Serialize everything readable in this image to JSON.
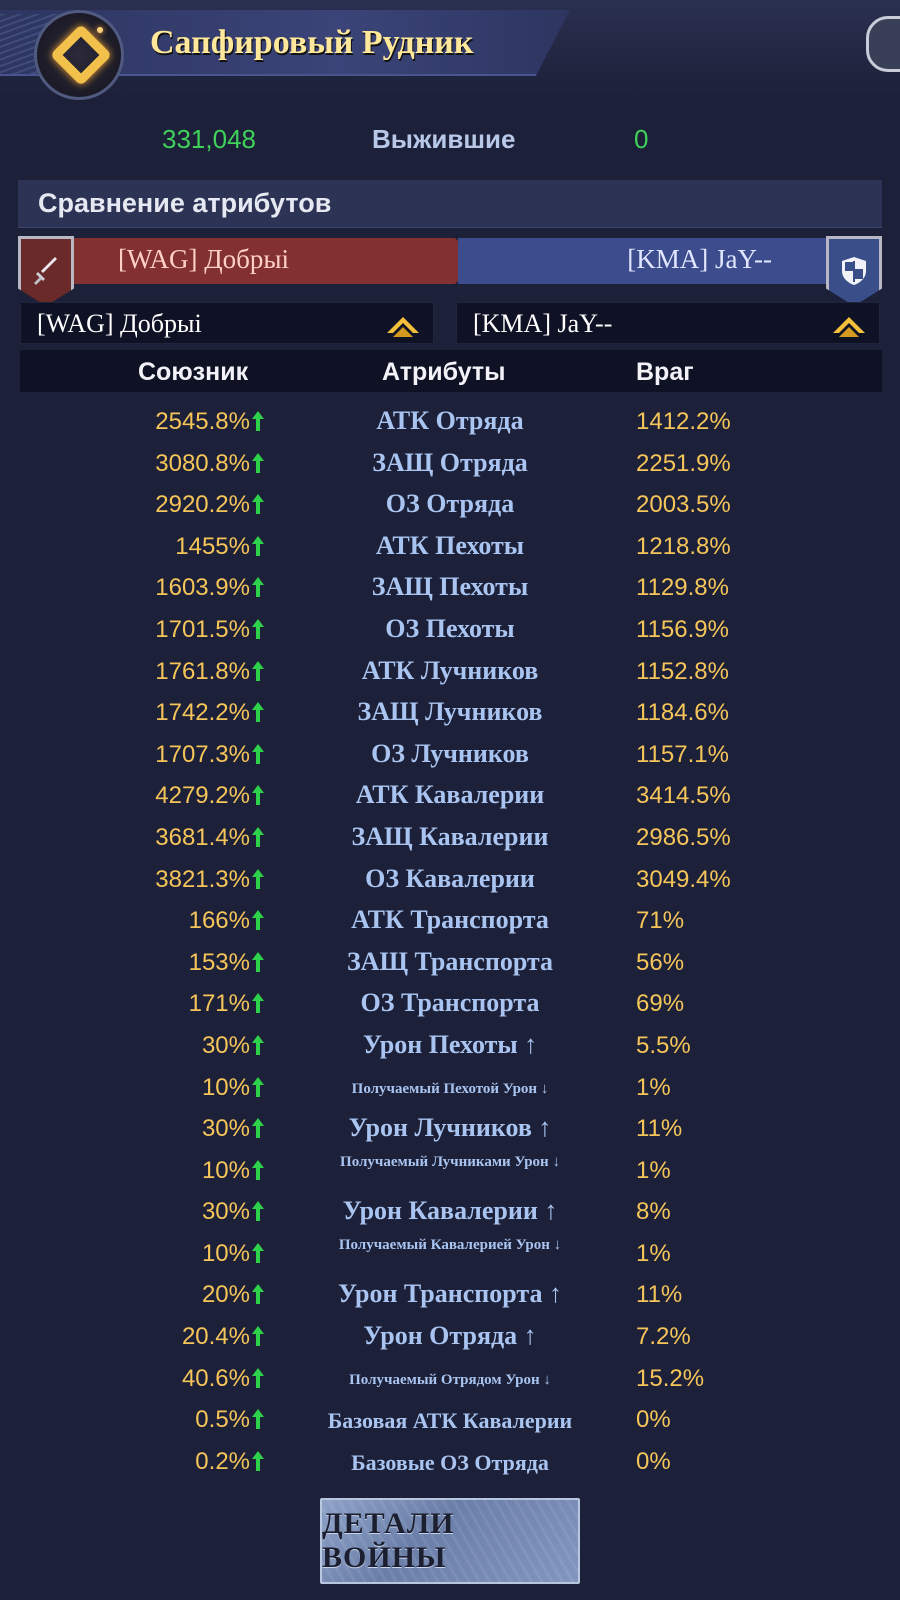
{
  "header": {
    "title": "Сапфировый Рудник"
  },
  "stats": {
    "left_value": "331,048",
    "label": "Выжившие",
    "right_value": "0"
  },
  "section": {
    "title": "Сравнение атрибутов"
  },
  "versus": {
    "ally_name": "[WAG] Добрыі",
    "enemy_name": "[KMA] JaY--"
  },
  "selectors": {
    "ally": "[WAG] Добрыі",
    "enemy": "[KMA] JaY--"
  },
  "columns": {
    "ally": "Союзник",
    "attributes": "Атрибуты",
    "enemy": "Враг"
  },
  "rows": [
    {
      "ally": "2545.8%",
      "attr": "АТК Отряда",
      "enemy": "1412.2%",
      "size": "normal"
    },
    {
      "ally": "3080.8%",
      "attr": "ЗАЩ Отряда",
      "enemy": "2251.9%",
      "size": "normal"
    },
    {
      "ally": "2920.2%",
      "attr": "ОЗ Отряда",
      "enemy": "2003.5%",
      "size": "normal"
    },
    {
      "ally": "1455%",
      "attr": "АТК Пехоты",
      "enemy": "1218.8%",
      "size": "normal"
    },
    {
      "ally": "1603.9%",
      "attr": "ЗАЩ Пехоты",
      "enemy": "1129.8%",
      "size": "normal"
    },
    {
      "ally": "1701.5%",
      "attr": "ОЗ Пехоты",
      "enemy": "1156.9%",
      "size": "normal"
    },
    {
      "ally": "1761.8%",
      "attr": "АТК Лучников",
      "enemy": "1152.8%",
      "size": "normal"
    },
    {
      "ally": "1742.2%",
      "attr": "ЗАЩ Лучников",
      "enemy": "1184.6%",
      "size": "normal"
    },
    {
      "ally": "1707.3%",
      "attr": "ОЗ Лучников",
      "enemy": "1157.1%",
      "size": "normal"
    },
    {
      "ally": "4279.2%",
      "attr": "АТК Кавалерии",
      "enemy": "3414.5%",
      "size": "normal"
    },
    {
      "ally": "3681.4%",
      "attr": "ЗАЩ Кавалерии",
      "enemy": "2986.5%",
      "size": "normal"
    },
    {
      "ally": "3821.3%",
      "attr": "ОЗ Кавалерии",
      "enemy": "3049.4%",
      "size": "normal"
    },
    {
      "ally": "166%",
      "attr": "АТК Транспорта",
      "enemy": "71%",
      "size": "normal"
    },
    {
      "ally": "153%",
      "attr": "ЗАЩ Транспорта",
      "enemy": "56%",
      "size": "normal"
    },
    {
      "ally": "171%",
      "attr": "ОЗ Транспорта",
      "enemy": "69%",
      "size": "normal"
    },
    {
      "ally": "30%",
      "attr": "Урон Пехоты ↑",
      "enemy": "5.5%",
      "size": "normal"
    },
    {
      "ally": "10%",
      "attr": "Получаемый Пехотой Урон ↓",
      "enemy": "1%",
      "size": "small"
    },
    {
      "ally": "30%",
      "attr": "Урон Лучников ↑",
      "enemy": "11%",
      "size": "normal"
    },
    {
      "ally": "10%",
      "attr": "Получаемый Лучниками Урон ↓",
      "enemy": "1%",
      "size": "small-two"
    },
    {
      "ally": "30%",
      "attr": "Урон Кавалерии ↑",
      "enemy": "8%",
      "size": "normal"
    },
    {
      "ally": "10%",
      "attr": "Получаемый Кавалерией Урон ↓",
      "enemy": "1%",
      "size": "small-two"
    },
    {
      "ally": "20%",
      "attr": "Урон Транспорта ↑",
      "enemy": "11%",
      "size": "normal"
    },
    {
      "ally": "20.4%",
      "attr": "Урон Отряда ↑",
      "enemy": "7.2%",
      "size": "normal"
    },
    {
      "ally": "40.6%",
      "attr": "Получаемый Отрядом Урон ↓",
      "enemy": "15.2%",
      "size": "small"
    },
    {
      "ally": "0.5%",
      "attr": "Базовая АТК Кавалерии",
      "enemy": "0%",
      "size": "medium"
    },
    {
      "ally": "0.2%",
      "attr": "Базовые ОЗ Отряда",
      "enemy": "0%",
      "size": "medium"
    }
  ],
  "button": {
    "label": "ДЕТАЛИ ВОЙНЫ"
  },
  "colors": {
    "ally_value": "#f5c55a",
    "attr_text": "#a9c4f0",
    "up_arrow": "#2ed14a",
    "survivors_green": "#3fd15a",
    "ally_bar": "#823030",
    "enemy_bar": "#3c4c8c"
  }
}
